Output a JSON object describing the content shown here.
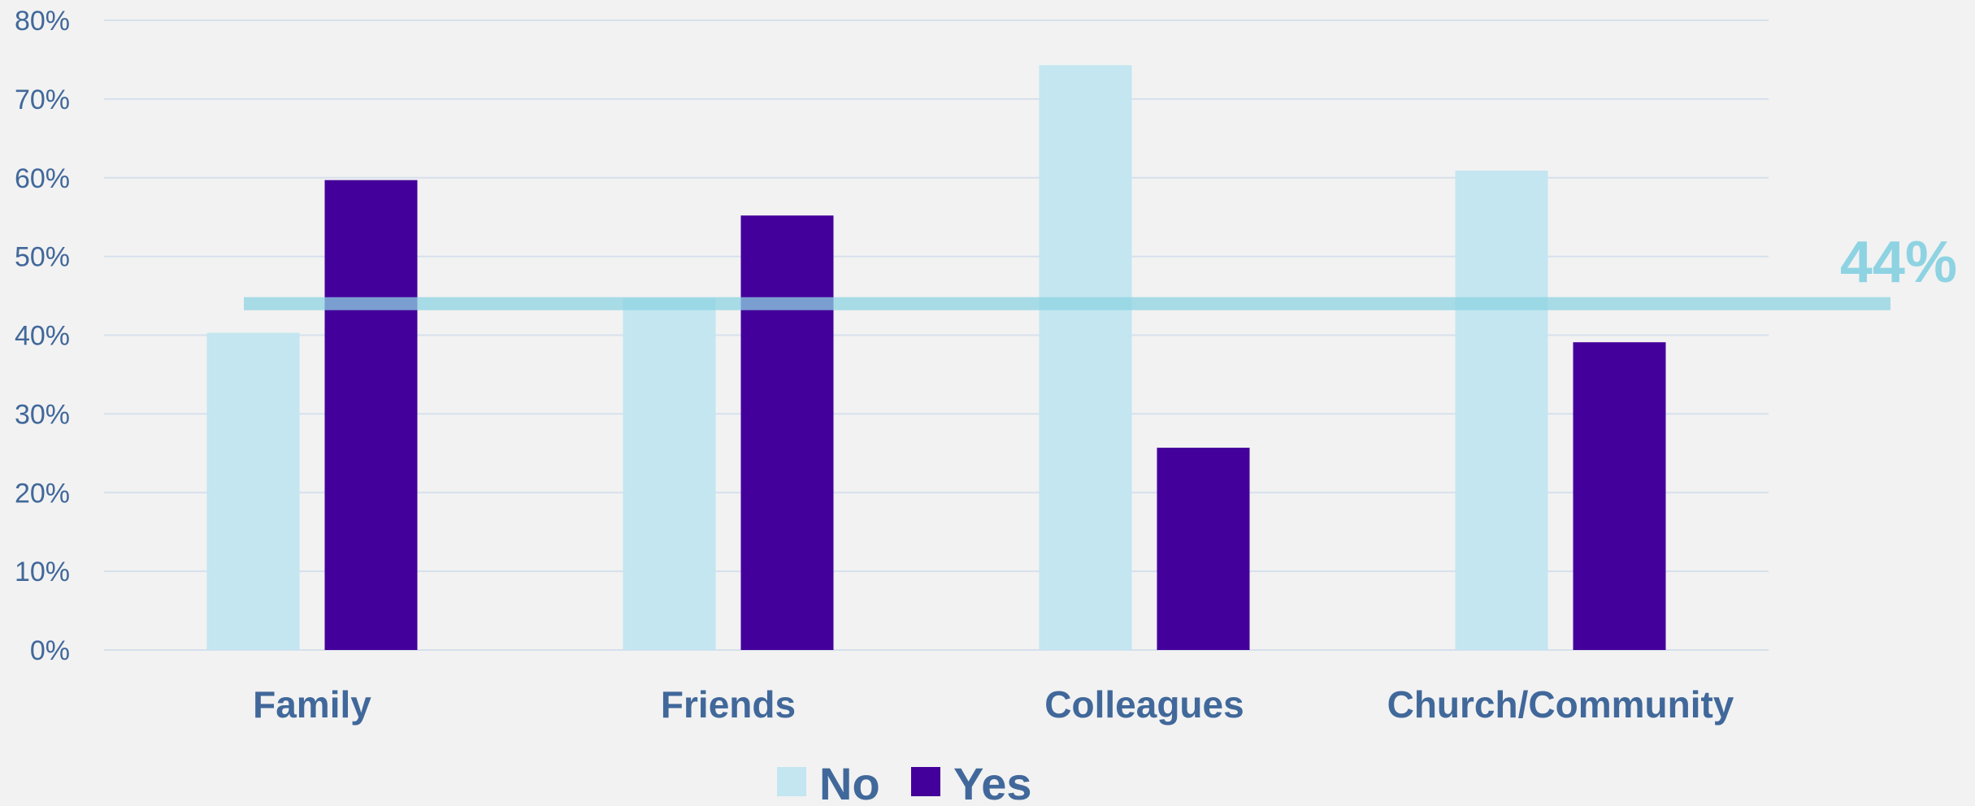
{
  "chart_data": {
    "type": "bar",
    "categories": [
      "Family",
      "Friends",
      "Colleagues",
      "Church/Community"
    ],
    "series": [
      {
        "name": "No",
        "values": [
          40.3,
          44.7,
          74.3,
          60.9
        ],
        "color": "#c3e6f0"
      },
      {
        "name": "Yes",
        "values": [
          59.7,
          55.2,
          25.7,
          39.1
        ],
        "color": "#44009b"
      }
    ],
    "ylim": [
      0,
      80
    ],
    "yticks": [
      "0%",
      "10%",
      "20%",
      "30%",
      "40%",
      "50%",
      "60%",
      "70%",
      "80%"
    ],
    "ytick_values": [
      0,
      10,
      20,
      30,
      40,
      50,
      60,
      70,
      80
    ],
    "grid": true,
    "legend_position": "bottom",
    "reference_line": {
      "value": 44,
      "label": "44%",
      "color": "#8ed3e2"
    },
    "gridline_color": "#d6e0ec",
    "text_color": "#41689a"
  }
}
